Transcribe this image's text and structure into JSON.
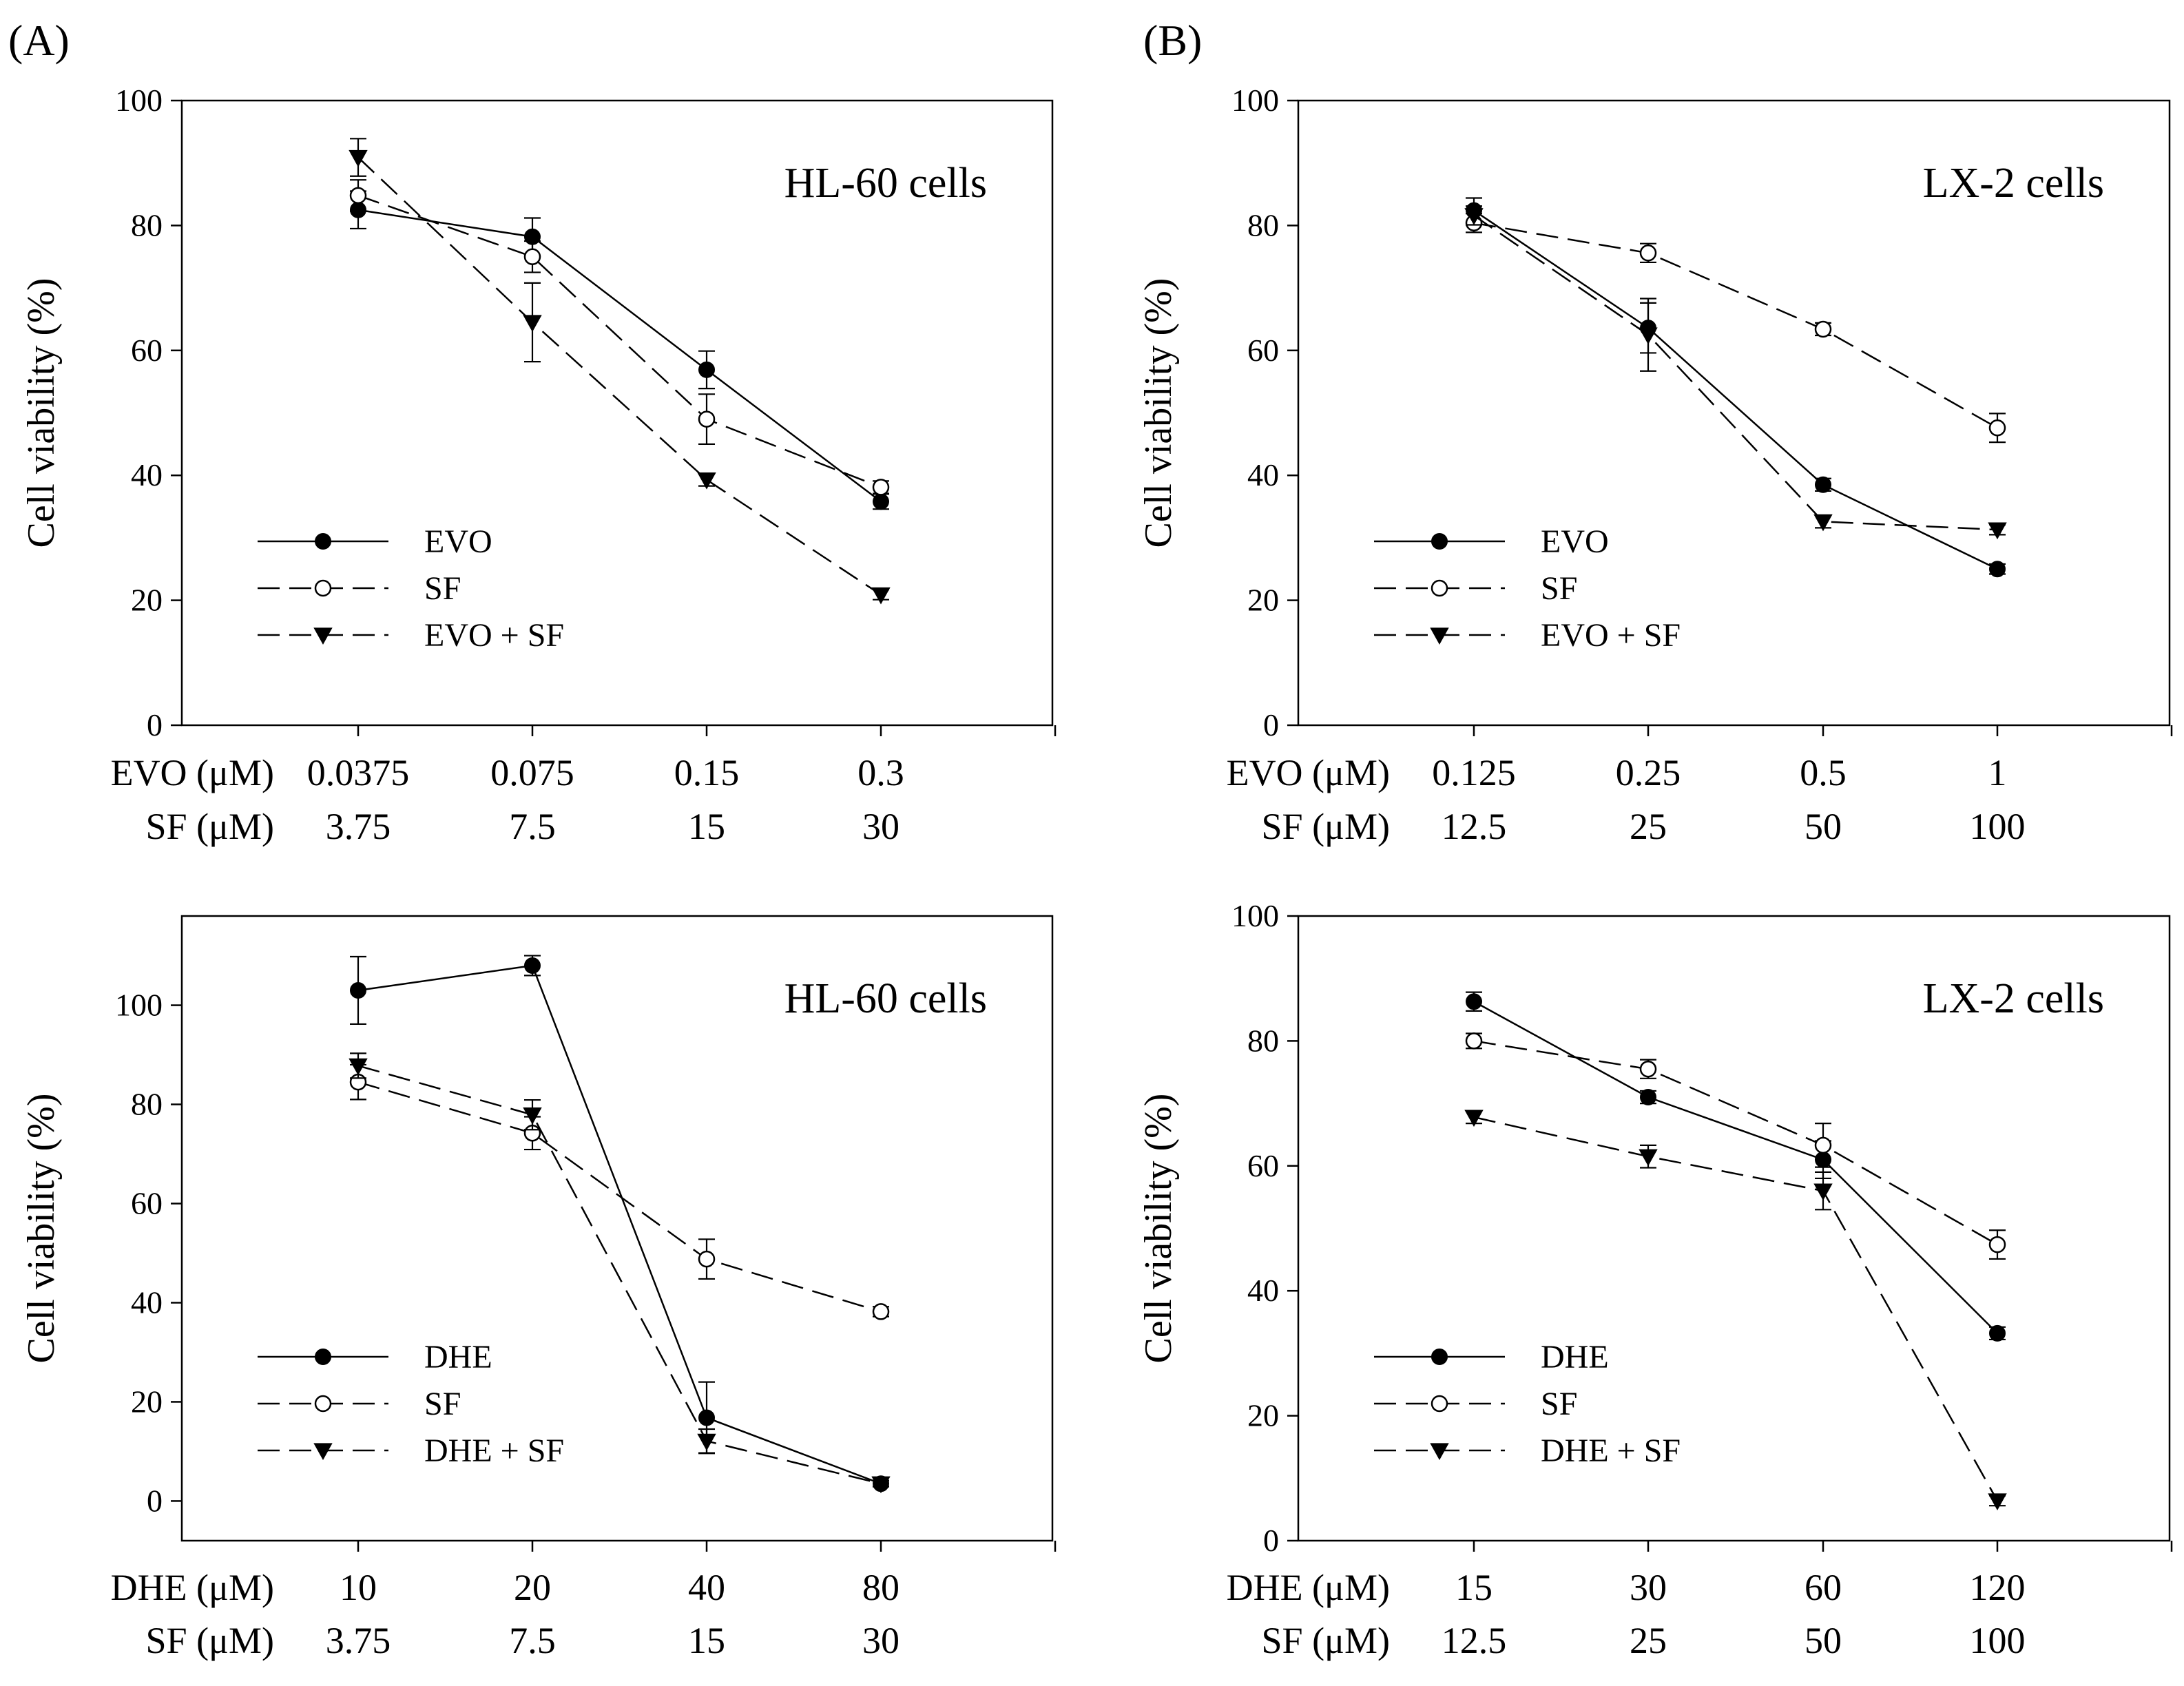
{
  "panels": [
    {
      "label": "(A)"
    },
    {
      "label": "(B)"
    }
  ],
  "chart_data": [
    {
      "type": "line",
      "title": "HL-60 cells",
      "ylabel": "Cell viability (%)",
      "ylim": [
        0,
        100
      ],
      "yticks": [
        0,
        20,
        40,
        60,
        80,
        100
      ],
      "categories": [
        "0.0375",
        "0.075",
        "0.15",
        "0.3"
      ],
      "x_rows": [
        {
          "label": "EVO (μM)",
          "values": [
            "0.0375",
            "0.075",
            "0.15",
            "0.3"
          ]
        },
        {
          "label": "SF (μM)",
          "values": [
            "3.75",
            "7.5",
            "15",
            "30"
          ]
        }
      ],
      "legend_position": "lower-left",
      "series": [
        {
          "name": "EVO",
          "marker": "filled-circle",
          "line": "solid",
          "values": [
            82.5,
            78.2,
            56.9,
            35.8
          ],
          "errors": [
            3.0,
            3.0,
            3.0,
            1.2
          ]
        },
        {
          "name": "SF",
          "marker": "open-circle",
          "line": "dashed",
          "values": [
            84.8,
            75.0,
            49.0,
            38.1
          ],
          "errors": [
            2.5,
            2.5,
            4.0,
            1.0
          ]
        },
        {
          "name": "EVO + SF",
          "marker": "filled-triangle-down",
          "line": "dashed",
          "values": [
            90.9,
            64.5,
            39.3,
            20.9
          ],
          "errors": [
            3.0,
            6.3,
            1.0,
            0.8
          ]
        }
      ]
    },
    {
      "type": "line",
      "title": "LX-2 cells",
      "ylabel": "Cell viability (%)",
      "ylim": [
        0,
        100
      ],
      "yticks": [
        0,
        20,
        40,
        60,
        80,
        100
      ],
      "categories": [
        "0.125",
        "0.25",
        "0.5",
        "1"
      ],
      "x_rows": [
        {
          "label": "EVO (μM)",
          "values": [
            "0.125",
            "0.25",
            "0.5",
            "1"
          ]
        },
        {
          "label": "SF (μM)",
          "values": [
            "12.5",
            "25",
            "50",
            "100"
          ]
        }
      ],
      "legend_position": "lower-left",
      "series": [
        {
          "name": "EVO",
          "marker": "filled-circle",
          "line": "solid",
          "values": [
            82.4,
            63.6,
            38.5,
            25.0
          ],
          "errors": [
            2.0,
            4.0,
            1.0,
            0.8
          ]
        },
        {
          "name": "SF",
          "marker": "open-circle",
          "line": "dashed",
          "values": [
            80.4,
            75.6,
            63.4,
            47.6
          ],
          "errors": [
            1.5,
            1.5,
            1.0,
            2.3
          ]
        },
        {
          "name": "EVO + SF",
          "marker": "filled-triangle-down",
          "line": "dashed",
          "values": [
            81.6,
            62.5,
            32.6,
            31.3
          ],
          "errors": [
            1.5,
            5.8,
            1.0,
            0.8
          ]
        }
      ]
    },
    {
      "type": "line",
      "title": "HL-60 cells",
      "ylabel": "Cell viability (%)",
      "ylim": [
        -8,
        118
      ],
      "yticks": [
        0,
        20,
        40,
        60,
        80,
        100
      ],
      "categories": [
        "10",
        "20",
        "40",
        "80"
      ],
      "x_rows": [
        {
          "label": "DHE (μM)",
          "values": [
            "10",
            "20",
            "40",
            "80"
          ]
        },
        {
          "label": "SF (μM)",
          "values": [
            "3.75",
            "7.5",
            "15",
            "30"
          ]
        }
      ],
      "legend_position": "lower-left",
      "series": [
        {
          "name": "DHE",
          "marker": "filled-circle",
          "line": "solid",
          "values": [
            103.0,
            108.0,
            16.8,
            3.5
          ],
          "errors": [
            6.8,
            2.0,
            7.2,
            0.6
          ]
        },
        {
          "name": "SF",
          "marker": "open-circle",
          "line": "dashed",
          "values": [
            84.5,
            74.2,
            48.8,
            38.2
          ],
          "errors": [
            3.5,
            3.3,
            4.0,
            1.0
          ]
        },
        {
          "name": "DHE + SF",
          "marker": "filled-triangle-down",
          "line": "dashed",
          "values": [
            87.8,
            77.9,
            12.1,
            3.5
          ],
          "errors": [
            2.5,
            3.0,
            2.4,
            0.6
          ]
        }
      ]
    },
    {
      "type": "line",
      "title": "LX-2 cells",
      "ylabel": "Cell viability (%)",
      "ylim": [
        0,
        100
      ],
      "yticks": [
        0,
        20,
        40,
        60,
        80,
        100
      ],
      "categories": [
        "15",
        "30",
        "60",
        "120"
      ],
      "x_rows": [
        {
          "label": "DHE (μM)",
          "values": [
            "15",
            "30",
            "60",
            "120"
          ]
        },
        {
          "label": "SF (μM)",
          "values": [
            "12.5",
            "25",
            "50",
            "100"
          ]
        }
      ],
      "legend_position": "lower-left",
      "series": [
        {
          "name": "DHE",
          "marker": "filled-circle",
          "line": "solid",
          "values": [
            86.3,
            71.0,
            61.0,
            33.2
          ],
          "errors": [
            1.5,
            1.0,
            3.0,
            1.0
          ]
        },
        {
          "name": "SF",
          "marker": "open-circle",
          "line": "dashed",
          "values": [
            80.0,
            75.5,
            63.3,
            47.4
          ],
          "errors": [
            1.2,
            1.5,
            3.5,
            2.3
          ]
        },
        {
          "name": "DHE + SF",
          "marker": "filled-triangle-down",
          "line": "dashed",
          "values": [
            67.8,
            61.5,
            56.0,
            6.4
          ],
          "errors": [
            1.0,
            1.8,
            3.0,
            0.8
          ]
        }
      ]
    }
  ]
}
